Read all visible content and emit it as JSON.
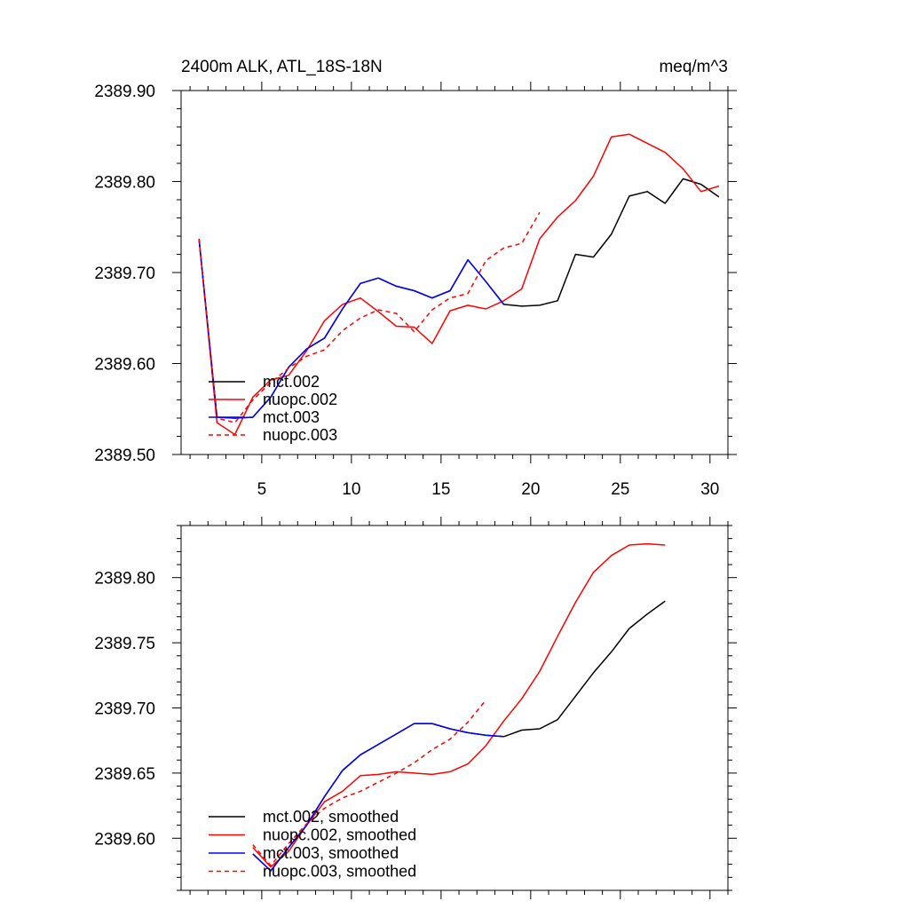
{
  "chart_data": [
    {
      "type": "line",
      "title": "2400m ALK, ATL_18S-18N",
      "units": "meq/m^3",
      "xlabel": "",
      "ylabel": "",
      "xlim": [
        0.5,
        31
      ],
      "ylim": [
        2389.5,
        2389.9
      ],
      "xticks": [
        5,
        10,
        15,
        20,
        25,
        30
      ],
      "yticks": [
        2389.5,
        2389.6,
        2389.7,
        2389.8,
        2389.9
      ],
      "ytick_labels": [
        "2389.50",
        "2389.60",
        "2389.70",
        "2389.80",
        "2389.90"
      ],
      "legend_position": "bottom-left",
      "series": [
        {
          "name": "mct.002",
          "color": "#000000",
          "dash": "solid",
          "x": [
            1.5,
            2.5,
            3.5,
            4.5,
            5.5,
            6.5,
            7.5,
            8.5,
            9.5,
            10.5,
            11.5,
            12.5,
            13.5,
            14.5,
            15.5,
            16.5,
            17.5,
            18.5,
            19.5,
            20.5,
            21.5,
            22.5,
            23.5,
            24.5,
            25.5,
            26.5,
            27.5,
            28.5,
            29.5,
            30.5
          ],
          "values": [
            2389.737,
            2389.541,
            2389.54,
            2389.541,
            2389.563,
            2389.596,
            2389.616,
            2389.628,
            2389.66,
            2389.688,
            2389.694,
            2389.685,
            2389.68,
            2389.672,
            2389.68,
            2389.714,
            2389.69,
            2389.665,
            2389.663,
            2389.664,
            2389.669,
            2389.72,
            2389.717,
            2389.742,
            2389.784,
            2389.789,
            2389.776,
            2389.803,
            2389.797,
            2389.783
          ]
        },
        {
          "name": "nuopc.002",
          "color": "#ff0000",
          "dash": "solid",
          "x": [
            1.5,
            2.5,
            3.5,
            4.5,
            5.5,
            6.5,
            7.5,
            8.5,
            9.5,
            10.5,
            11.5,
            12.5,
            13.5,
            14.5,
            15.5,
            16.5,
            17.5,
            18.5,
            19.5,
            20.5,
            21.5,
            22.5,
            23.5,
            24.5,
            25.5,
            26.5,
            27.5,
            28.5,
            29.5,
            30.5
          ],
          "values": [
            2389.737,
            2389.535,
            2389.522,
            2389.563,
            2389.582,
            2389.587,
            2389.614,
            2389.647,
            2389.665,
            2389.672,
            2389.657,
            2389.641,
            2389.64,
            2389.622,
            2389.658,
            2389.664,
            2389.66,
            2389.669,
            2389.682,
            2389.737,
            2389.761,
            2389.779,
            2389.806,
            2389.849,
            2389.852,
            2389.842,
            2389.832,
            2389.814,
            2389.789,
            2389.795
          ]
        },
        {
          "name": "mct.003",
          "color": "#0000ff",
          "dash": "solid",
          "x": [
            1.5,
            2.5,
            3.5,
            4.5,
            5.5,
            6.5,
            7.5,
            8.5,
            9.5,
            10.5,
            11.5,
            12.5,
            13.5,
            14.5,
            15.5,
            16.5,
            17.5,
            18.5
          ],
          "values": [
            2389.737,
            2389.541,
            2389.54,
            2389.541,
            2389.563,
            2389.596,
            2389.616,
            2389.628,
            2389.66,
            2389.688,
            2389.694,
            2389.685,
            2389.68,
            2389.672,
            2389.68,
            2389.714,
            2389.69,
            2389.665
          ]
        },
        {
          "name": "nuopc.003",
          "color": "#ff0000",
          "dash": "dashed",
          "x": [
            1.5,
            2.5,
            3.5,
            4.5,
            5.5,
            6.5,
            7.5,
            8.5,
            9.5,
            10.5,
            11.5,
            12.5,
            13.5,
            14.5,
            15.5,
            16.5,
            17.5,
            18.5,
            19.5,
            20.5
          ],
          "values": [
            2389.737,
            2389.54,
            2389.535,
            2389.56,
            2389.579,
            2389.595,
            2389.608,
            2389.615,
            2389.636,
            2389.65,
            2389.659,
            2389.655,
            2389.635,
            2389.659,
            2389.672,
            2389.677,
            2389.713,
            2389.727,
            2389.732,
            2389.766
          ]
        }
      ]
    },
    {
      "type": "line",
      "title": "",
      "xlabel": "",
      "ylabel": "",
      "xlim": [
        0.5,
        31
      ],
      "ylim": [
        2389.56,
        2389.84
      ],
      "xticks": [
        5,
        10,
        15,
        20,
        25,
        30
      ],
      "yticks": [
        2389.6,
        2389.65,
        2389.7,
        2389.75,
        2389.8
      ],
      "ytick_labels": [
        "2389.60",
        "2389.65",
        "2389.70",
        "2389.75",
        "2389.80"
      ],
      "legend_position": "bottom-left",
      "series": [
        {
          "name": "mct.002, smoothed",
          "color": "#000000",
          "dash": "solid",
          "x": [
            4.5,
            5.5,
            6.5,
            7.5,
            8.5,
            9.5,
            10.5,
            11.5,
            12.5,
            13.5,
            14.5,
            15.5,
            16.5,
            17.5,
            18.5,
            19.5,
            20.5,
            21.5,
            22.5,
            23.5,
            24.5,
            25.5,
            26.5,
            27.5
          ],
          "values": [
            2389.588,
            2389.575,
            2389.593,
            2389.61,
            2389.632,
            2389.652,
            2389.664,
            2389.672,
            2389.68,
            2389.688,
            2389.688,
            2389.684,
            2389.681,
            2389.679,
            2389.678,
            2389.683,
            2389.684,
            2389.691,
            2389.709,
            2389.727,
            2389.743,
            2389.761,
            2389.772,
            2389.782
          ]
        },
        {
          "name": "nuopc.002, smoothed",
          "color": "#ff0000",
          "dash": "solid",
          "x": [
            4.5,
            5.5,
            6.5,
            7.5,
            8.5,
            9.5,
            10.5,
            11.5,
            12.5,
            13.5,
            14.5,
            15.5,
            16.5,
            17.5,
            18.5,
            19.5,
            20.5,
            21.5,
            22.5,
            23.5,
            24.5,
            25.5,
            26.5,
            27.5
          ],
          "values": [
            2389.593,
            2389.578,
            2389.59,
            2389.61,
            2389.628,
            2389.636,
            2389.648,
            2389.649,
            2389.651,
            2389.65,
            2389.649,
            2389.651,
            2389.657,
            2389.671,
            2389.69,
            2389.707,
            2389.728,
            2389.755,
            2389.781,
            2389.804,
            2389.817,
            2389.825,
            2389.826,
            2389.825
          ]
        },
        {
          "name": "mct.003, smoothed",
          "color": "#0000ff",
          "dash": "solid",
          "x": [
            4.5,
            5.5,
            6.5,
            7.5,
            8.5,
            9.5,
            10.5,
            11.5,
            12.5,
            13.5,
            14.5,
            15.5,
            16.5,
            17.5,
            18.5
          ],
          "values": [
            2389.588,
            2389.575,
            2389.593,
            2389.61,
            2389.632,
            2389.652,
            2389.664,
            2389.672,
            2389.68,
            2389.688,
            2389.688,
            2389.684,
            2389.681,
            2389.679,
            2389.678
          ]
        },
        {
          "name": "nuopc.003, smoothed",
          "color": "#ff0000",
          "dash": "dashed",
          "x": [
            4.5,
            5.5,
            6.5,
            7.5,
            8.5,
            9.5,
            10.5,
            11.5,
            12.5,
            13.5,
            14.5,
            15.5,
            16.5,
            17.5
          ],
          "values": [
            2389.595,
            2389.579,
            2389.596,
            2389.611,
            2389.623,
            2389.631,
            2389.636,
            2389.643,
            2389.65,
            2389.658,
            2389.668,
            2389.676,
            2389.689,
            2389.706
          ]
        }
      ]
    }
  ]
}
